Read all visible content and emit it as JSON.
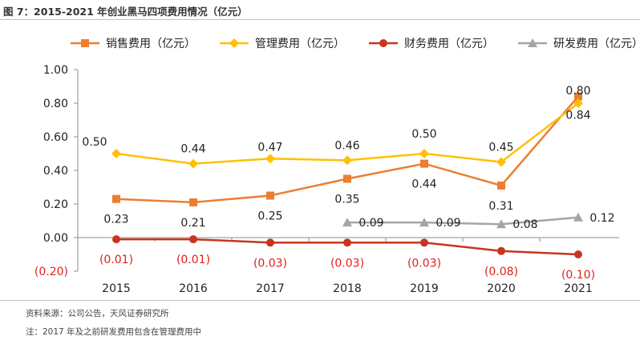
{
  "figure": {
    "title": "图 7：2015-2021 年创业黑马四项费用情况（亿元）",
    "source": "资料来源：公司公告，天风证券研究所",
    "note": "注：2017 年及之前研发费用包含在管理费用中"
  },
  "chart_data": {
    "type": "line",
    "categories": [
      "2015",
      "2016",
      "2017",
      "2018",
      "2019",
      "2020",
      "2021"
    ],
    "ylim": [
      -0.2,
      1.0
    ],
    "yticks": [
      -0.2,
      0.0,
      0.2,
      0.4,
      0.6,
      0.8,
      1.0
    ],
    "ytick_labels": [
      "(0.20)",
      "0.00",
      "0.20",
      "0.40",
      "0.60",
      "0.80",
      "1.00"
    ],
    "legend_position": "top",
    "grid": false,
    "series": [
      {
        "name": "销售费用（亿元）",
        "color": "#ED7D31",
        "marker": "square",
        "values": [
          0.23,
          0.21,
          0.25,
          0.35,
          0.44,
          0.31,
          0.84
        ],
        "labels": [
          "0.23",
          "0.21",
          "0.25",
          "0.35",
          "0.44",
          "0.31",
          "0.84"
        ],
        "label_color": "#222222"
      },
      {
        "name": "管理费用（亿元）",
        "color": "#FFC000",
        "marker": "diamond",
        "values": [
          0.5,
          0.44,
          0.47,
          0.46,
          0.5,
          0.45,
          0.8
        ],
        "labels": [
          "0.50",
          "0.44",
          "0.47",
          "0.46",
          "0.50",
          "0.45",
          "0.80"
        ],
        "label_color": "#222222"
      },
      {
        "name": "财务费用（亿元）",
        "color": "#C8341E",
        "marker": "circle",
        "values": [
          -0.01,
          -0.01,
          -0.03,
          -0.03,
          -0.03,
          -0.08,
          -0.1
        ],
        "labels": [
          "(0.01)",
          "(0.01)",
          "(0.03)",
          "(0.03)",
          "(0.03)",
          "(0.08)",
          "(0.10)"
        ],
        "label_color": "#E0201B"
      },
      {
        "name": "研发费用（亿元）",
        "color": "#A5A5A5",
        "marker": "triangle",
        "values": [
          null,
          null,
          null,
          0.09,
          0.09,
          0.08,
          0.12
        ],
        "labels": [
          null,
          null,
          null,
          "0.09",
          "0.09",
          "0.08",
          "0.12"
        ],
        "label_color": "#222222"
      }
    ]
  }
}
